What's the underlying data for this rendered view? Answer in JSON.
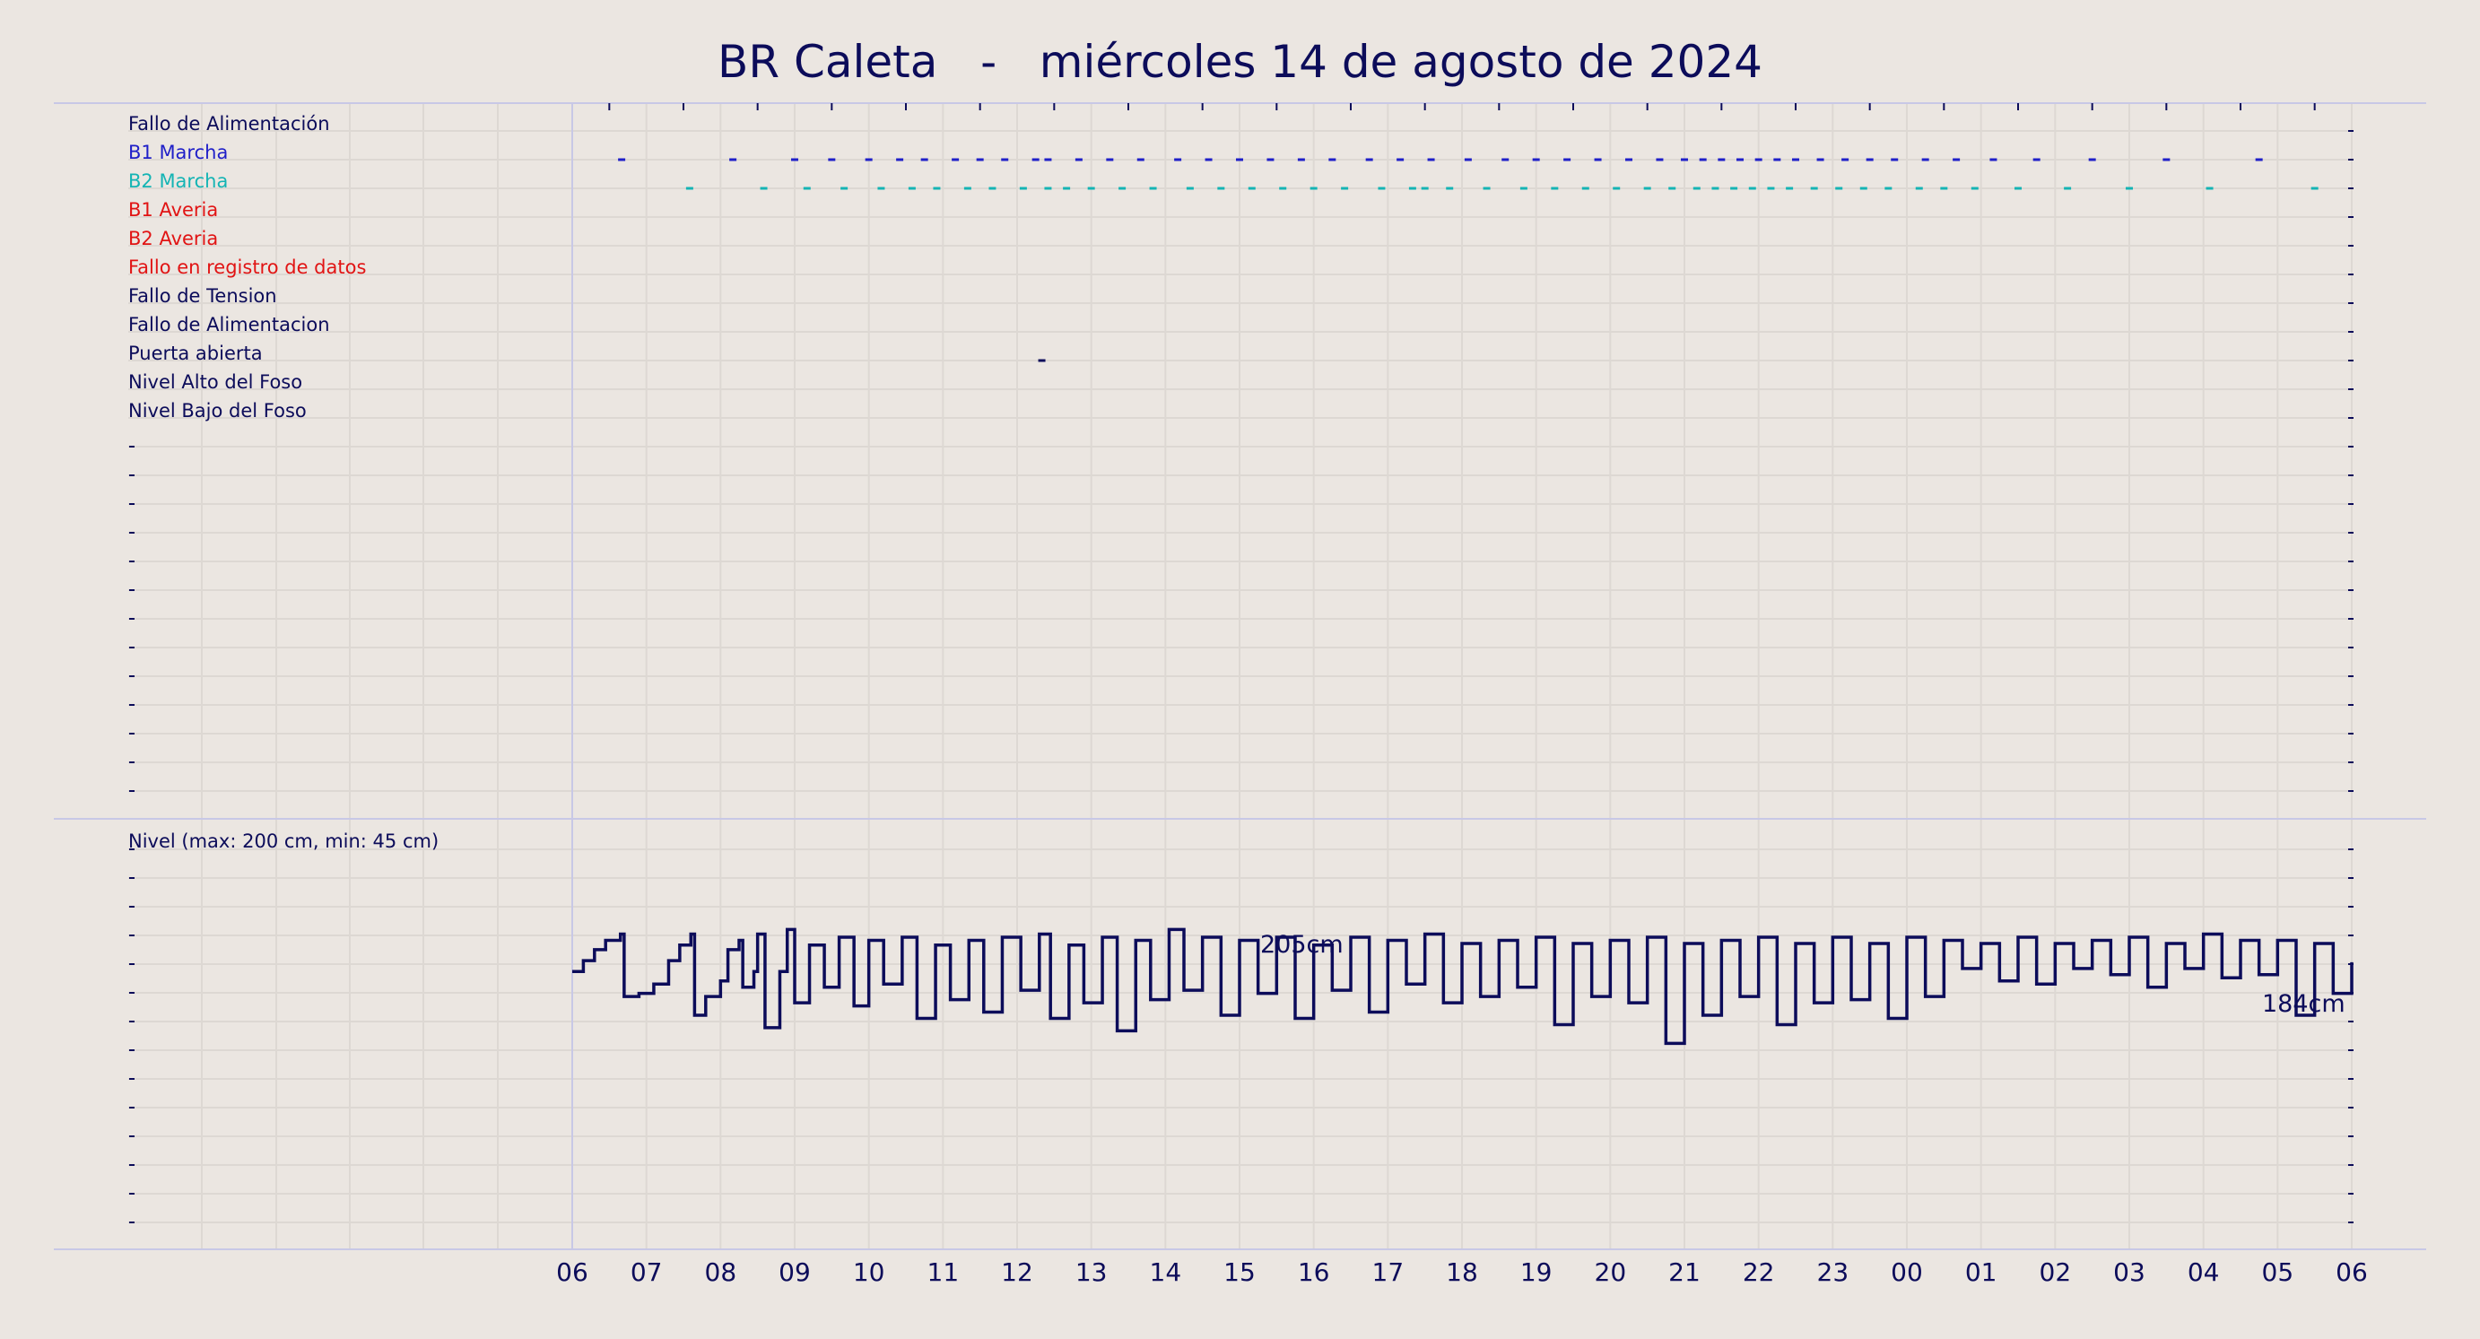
{
  "title": "BR Caleta   -   miércoles 14 de agosto de 2024",
  "colors": {
    "background": "#ebe6e1",
    "navy": "#0c0c5a",
    "blue": "#1f1fc8",
    "cyan": "#14b4b4",
    "red": "#e11414",
    "grid": "#ddd8d3",
    "frame": "#c8c8e6"
  },
  "chart_data": [
    {
      "type": "timeline",
      "series": [
        {
          "name": "Fallo de Alimentación",
          "color": "#0c0c5a",
          "events": []
        },
        {
          "name": "B1 Marcha",
          "color": "#1f1fc8",
          "events": [
            "06:40",
            "08:10",
            "09:00",
            "09:30",
            "10:00",
            "10:25",
            "10:45",
            "11:10",
            "11:30",
            "11:50",
            "12:15",
            "12:25",
            "12:50",
            "13:15",
            "13:40",
            "14:10",
            "14:35",
            "15:00",
            "15:25",
            "15:50",
            "16:15",
            "16:45",
            "17:10",
            "17:35",
            "18:05",
            "18:35",
            "19:00",
            "19:25",
            "19:50",
            "20:15",
            "20:40",
            "21:00",
            "21:15",
            "21:30",
            "21:45",
            "22:00",
            "22:15",
            "22:30",
            "22:50",
            "23:10",
            "23:30",
            "23:50",
            "00:15",
            "00:40",
            "01:10",
            "01:45",
            "02:30",
            "03:30",
            "04:45"
          ]
        },
        {
          "name": "B2 Marcha",
          "color": "#14b4b4",
          "events": [
            "07:35",
            "08:35",
            "09:10",
            "09:40",
            "10:10",
            "10:35",
            "10:55",
            "11:20",
            "11:40",
            "12:05",
            "12:25",
            "12:40",
            "13:00",
            "13:25",
            "13:50",
            "14:20",
            "14:45",
            "15:10",
            "15:35",
            "16:00",
            "16:25",
            "16:55",
            "17:20",
            "17:30",
            "17:50",
            "18:20",
            "18:50",
            "19:15",
            "19:40",
            "20:05",
            "20:30",
            "20:50",
            "21:10",
            "21:25",
            "21:40",
            "21:55",
            "22:10",
            "22:25",
            "22:45",
            "23:05",
            "23:25",
            "23:45",
            "00:10",
            "00:30",
            "00:55",
            "01:30",
            "02:10",
            "03:00",
            "04:05",
            "05:30"
          ]
        },
        {
          "name": "B1 Averia",
          "color": "#e11414",
          "events": []
        },
        {
          "name": "B2 Averia",
          "color": "#e11414",
          "events": []
        },
        {
          "name": "Fallo en registro de datos",
          "color": "#e11414",
          "events": []
        },
        {
          "name": "Fallo de Tension",
          "color": "#0c0c5a",
          "events": []
        },
        {
          "name": "Fallo de Alimentacion",
          "color": "#0c0c5a",
          "events": []
        },
        {
          "name": "Puerta abierta",
          "color": "#0c0c5a",
          "events": [
            "12:20"
          ]
        },
        {
          "name": "Nivel Alto del Foso",
          "color": "#0c0c5a",
          "events": []
        },
        {
          "name": "Nivel Bajo del Foso",
          "color": "#0c0c5a",
          "events": []
        }
      ]
    },
    {
      "type": "line",
      "label": "Nivel (max: 200 cm, min: 45 cm)",
      "series_color": "#0c0c5a",
      "x_range_hours": [
        0,
        24
      ],
      "x_ticks": [
        "06",
        "07",
        "08",
        "09",
        "10",
        "11",
        "12",
        "13",
        "14",
        "15",
        "16",
        "17",
        "18",
        "19",
        "20",
        "21",
        "22",
        "23",
        "00",
        "01",
        "02",
        "03",
        "04",
        "05",
        "06"
      ],
      "ylim_cm": [
        0,
        500
      ],
      "max_annotation": "205cm",
      "last_annotation": "184cm",
      "points": [
        [
          0.0,
          178
        ],
        [
          0.15,
          185
        ],
        [
          0.3,
          192
        ],
        [
          0.45,
          198
        ],
        [
          0.65,
          202
        ],
        [
          0.7,
          162
        ],
        [
          0.9,
          164
        ],
        [
          1.1,
          170
        ],
        [
          1.3,
          185
        ],
        [
          1.45,
          195
        ],
        [
          1.6,
          202
        ],
        [
          1.65,
          150
        ],
        [
          1.8,
          162
        ],
        [
          2.0,
          172
        ],
        [
          2.1,
          192
        ],
        [
          2.25,
          198
        ],
        [
          2.3,
          168
        ],
        [
          2.45,
          178
        ],
        [
          2.5,
          202
        ],
        [
          2.6,
          142
        ],
        [
          2.8,
          178
        ],
        [
          2.9,
          205
        ],
        [
          3.0,
          158
        ],
        [
          3.2,
          195
        ],
        [
          3.4,
          168
        ],
        [
          3.6,
          200
        ],
        [
          3.8,
          156
        ],
        [
          4.0,
          198
        ],
        [
          4.2,
          170
        ],
        [
          4.45,
          200
        ],
        [
          4.65,
          148
        ],
        [
          4.9,
          195
        ],
        [
          5.1,
          160
        ],
        [
          5.35,
          198
        ],
        [
          5.55,
          152
        ],
        [
          5.8,
          200
        ],
        [
          6.05,
          166
        ],
        [
          6.3,
          202
        ],
        [
          6.45,
          148
        ],
        [
          6.7,
          195
        ],
        [
          6.9,
          158
        ],
        [
          7.15,
          200
        ],
        [
          7.35,
          140
        ],
        [
          7.6,
          198
        ],
        [
          7.8,
          160
        ],
        [
          8.05,
          205
        ],
        [
          8.25,
          166
        ],
        [
          8.5,
          200
        ],
        [
          8.75,
          150
        ],
        [
          9.0,
          198
        ],
        [
          9.25,
          164
        ],
        [
          9.5,
          200
        ],
        [
          9.75,
          148
        ],
        [
          10.0,
          195
        ],
        [
          10.25,
          166
        ],
        [
          10.5,
          200
        ],
        [
          10.75,
          152
        ],
        [
          11.0,
          198
        ],
        [
          11.25,
          170
        ],
        [
          11.5,
          202
        ],
        [
          11.75,
          158
        ],
        [
          12.0,
          196
        ],
        [
          12.25,
          162
        ],
        [
          12.5,
          198
        ],
        [
          12.75,
          168
        ],
        [
          13.0,
          200
        ],
        [
          13.25,
          144
        ],
        [
          13.5,
          196
        ],
        [
          13.75,
          162
        ],
        [
          14.0,
          198
        ],
        [
          14.25,
          158
        ],
        [
          14.5,
          200
        ],
        [
          14.75,
          132
        ],
        [
          15.0,
          196
        ],
        [
          15.25,
          150
        ],
        [
          15.5,
          198
        ],
        [
          15.75,
          162
        ],
        [
          16.0,
          200
        ],
        [
          16.25,
          144
        ],
        [
          16.5,
          196
        ],
        [
          16.75,
          158
        ],
        [
          17.0,
          200
        ],
        [
          17.25,
          160
        ],
        [
          17.5,
          196
        ],
        [
          17.75,
          148
        ],
        [
          18.0,
          200
        ],
        [
          18.25,
          162
        ],
        [
          18.5,
          198
        ],
        [
          18.75,
          180
        ],
        [
          19.0,
          196
        ],
        [
          19.25,
          172
        ],
        [
          19.5,
          200
        ],
        [
          19.75,
          170
        ],
        [
          20.0,
          196
        ],
        [
          20.25,
          180
        ],
        [
          20.5,
          198
        ],
        [
          20.75,
          176
        ],
        [
          21.0,
          200
        ],
        [
          21.25,
          168
        ],
        [
          21.5,
          196
        ],
        [
          21.75,
          180
        ],
        [
          22.0,
          202
        ],
        [
          22.25,
          174
        ],
        [
          22.5,
          198
        ],
        [
          22.75,
          176
        ],
        [
          23.0,
          198
        ],
        [
          23.25,
          150
        ],
        [
          23.5,
          196
        ],
        [
          23.75,
          164
        ],
        [
          24.0,
          184
        ]
      ]
    }
  ]
}
